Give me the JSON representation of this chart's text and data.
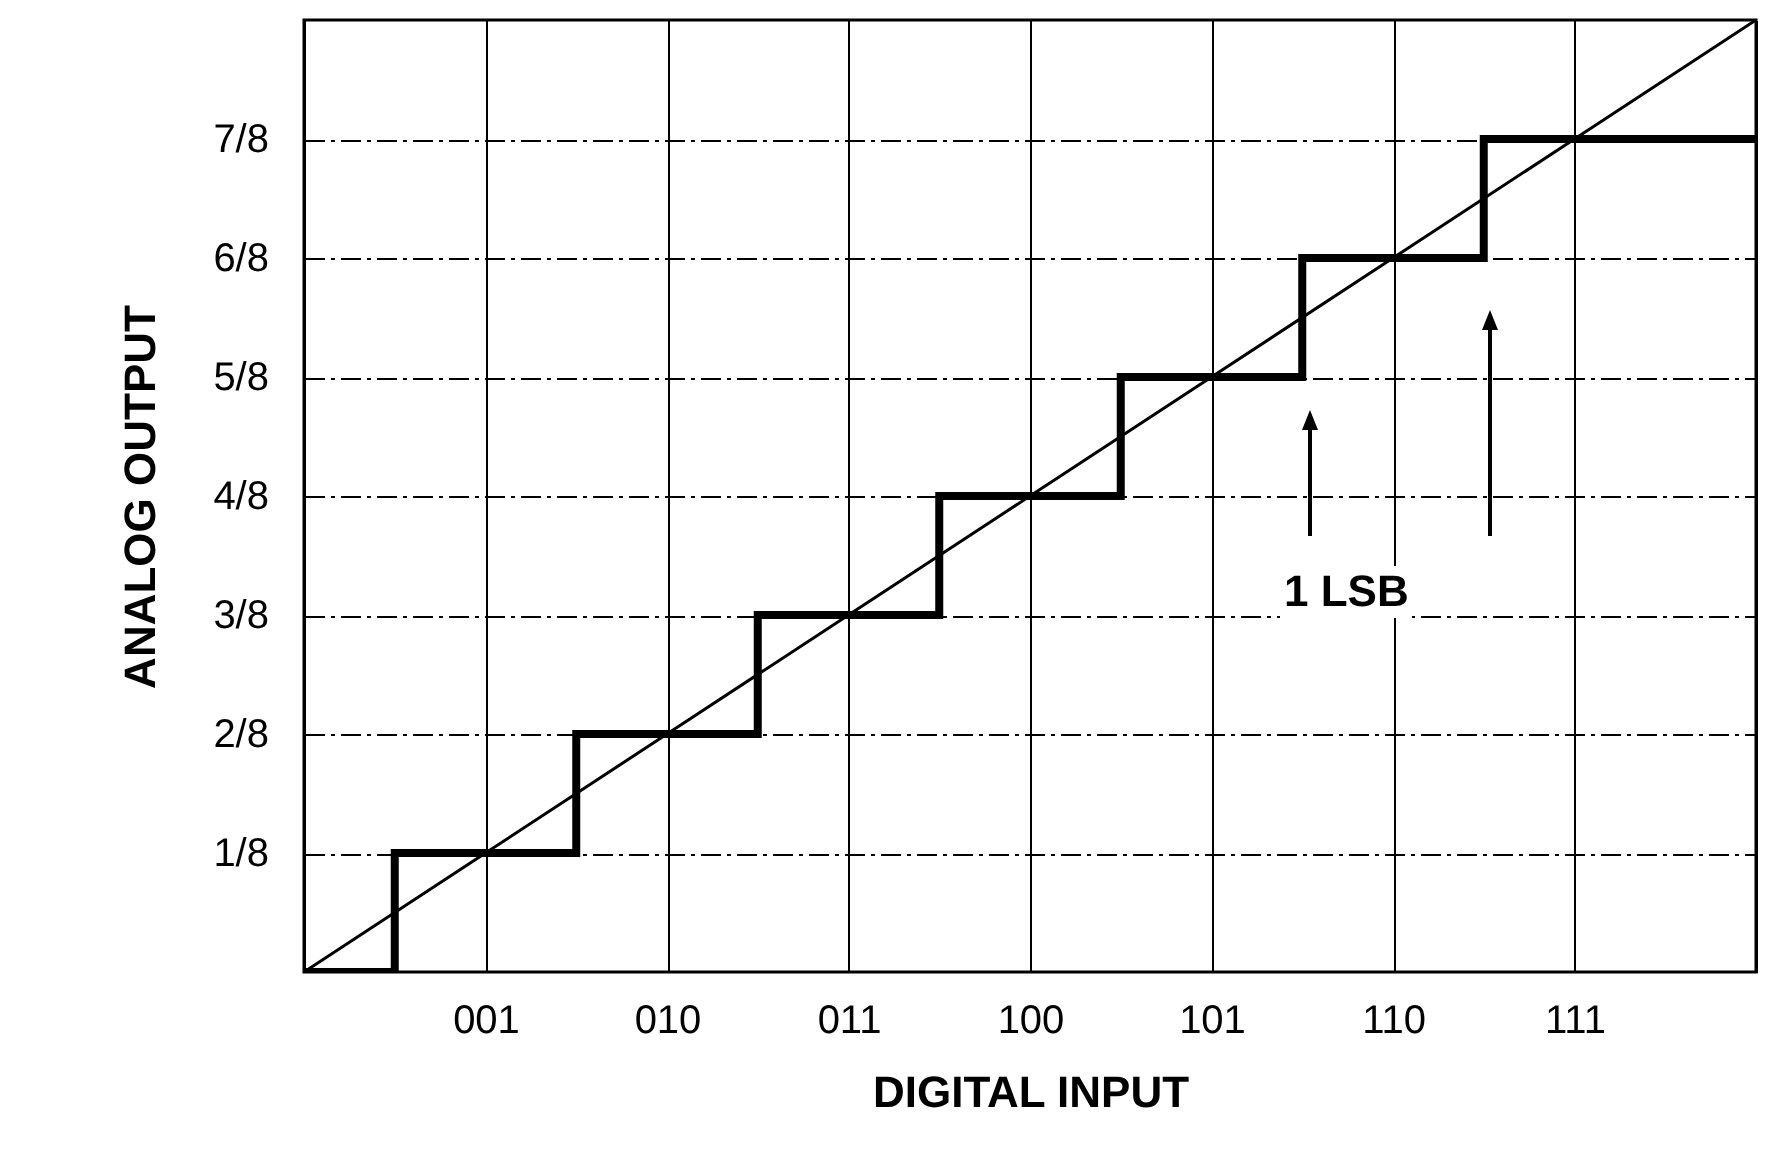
{
  "chart_data": {
    "type": "step",
    "xlabel": "DIGITAL INPUT",
    "ylabel": "ANALOG OUTPUT",
    "categories": [
      null,
      "001",
      "010",
      "011",
      "100",
      "101",
      "110",
      "111",
      null
    ],
    "ylim": [
      0,
      1
    ],
    "yticks": [
      {
        "value": 0.125,
        "label": "1/8"
      },
      {
        "value": 0.25,
        "label": "2/8"
      },
      {
        "value": 0.375,
        "label": "3/8"
      },
      {
        "value": 0.5,
        "label": "4/8"
      },
      {
        "value": 0.625,
        "label": "5/8"
      },
      {
        "value": 0.75,
        "label": "6/8"
      },
      {
        "value": 0.875,
        "label": "7/8"
      }
    ],
    "grid": true,
    "series": [
      {
        "type": "line",
        "color": "#000000",
        "values": [
          0,
          0.125,
          0.25,
          0.375,
          0.5,
          0.625,
          0.75,
          0.875,
          1
        ]
      },
      {
        "color": "#000000",
        "values": [
          0,
          0.125,
          0.25,
          0.375,
          0.5,
          0.625,
          0.75,
          0.875,
          0.875
        ]
      }
    ],
    "annotations": [
      "1 LSB"
    ]
  }
}
